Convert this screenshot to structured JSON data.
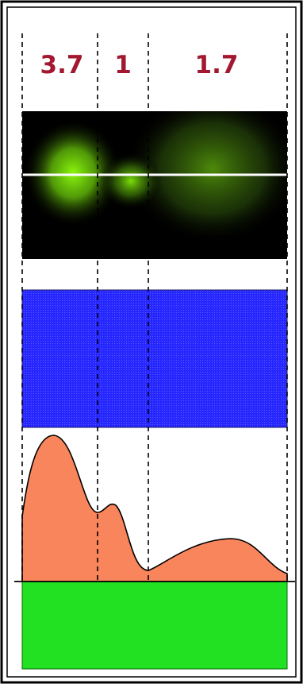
{
  "columns": [
    {
      "label": "3.7"
    },
    {
      "label": "1"
    },
    {
      "label": "1.7"
    }
  ]
}
